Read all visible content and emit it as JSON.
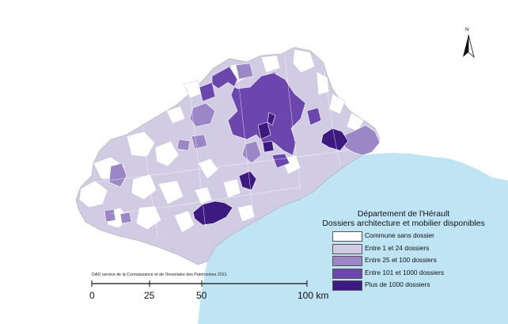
{
  "legend": {
    "title_line1": "Département de l'Hérault",
    "title_line2": "Dossiers architecture et mobilier disponibles",
    "items": [
      {
        "label": "Commune sans dossier",
        "color": "#ffffff"
      },
      {
        "label": "Entre 1 et 24 dossiers",
        "color": "#d1cce4"
      },
      {
        "label": "Entre 25 et 100 dossiers",
        "color": "#9b86c6"
      },
      {
        "label": "Entre 101 et 1000 dossiers",
        "color": "#6a46ad"
      },
      {
        "label": "Plus de 1000 dossiers",
        "color": "#3d1a80"
      }
    ]
  },
  "credit": "DAO service de la Connaissance et de l'Inventaire des Patrimoines 2021",
  "scale": {
    "labels": [
      "0",
      "25",
      "50",
      "100 km"
    ]
  },
  "north": {
    "label": "N"
  },
  "colors": {
    "sea": "#bfe5f5",
    "land_default": "#d1cce4",
    "border": "#ffffff"
  }
}
